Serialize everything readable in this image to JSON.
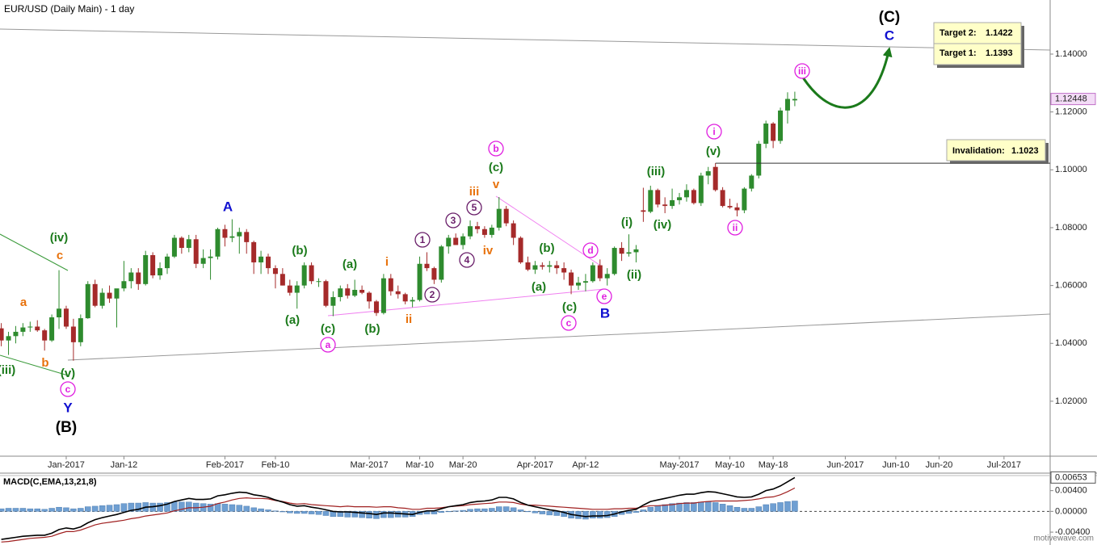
{
  "watermark": "motivewave.com",
  "chart_data": [
    {
      "type": "candlestick",
      "title": "EUR/USD (Daily Main) - 1 day",
      "up_color": "#2e8b2e",
      "down_color": "#a52a2a",
      "ylim": [
        1.001,
        1.1587
      ],
      "yticks": [
        {
          "value": 1.02,
          "label": "1.02000"
        },
        {
          "value": 1.04,
          "label": "1.04000"
        },
        {
          "value": 1.06,
          "label": "1.06000"
        },
        {
          "value": 1.08,
          "label": "1.08000"
        },
        {
          "value": 1.1,
          "label": "1.10000"
        },
        {
          "value": 1.12,
          "label": "1.12000"
        },
        {
          "value": 1.14,
          "label": "1.14000"
        }
      ],
      "last_price": {
        "value": 1.12448,
        "label": "1.12448"
      },
      "targets": [
        {
          "label": "Target 2:",
          "value": 1.1422
        },
        {
          "label": "Target 1:",
          "value": 1.1393
        }
      ],
      "invalidation": {
        "label": "Invalidation:",
        "value": 1.1023
      },
      "wave_labels": [
        "(iii)",
        "(iv)",
        "(v)",
        "a",
        "b",
        "c",
        "c",
        "Y",
        "(B)",
        "A",
        "(a)",
        "(b)",
        "(c)",
        "a",
        "(a)",
        "(b)",
        "i",
        "ii",
        "1",
        "2",
        "3",
        "4",
        "5",
        "iii",
        "iv",
        "v",
        "(c)",
        "b",
        "(b)",
        "(a)",
        "(c)",
        "c",
        "d",
        "e",
        "B",
        "(i)",
        "(ii)",
        "(iii)",
        "(iv)",
        "(v)",
        "i",
        "ii",
        "iii",
        "C",
        "(C)"
      ],
      "categories": [
        null,
        null,
        null,
        null,
        null,
        null,
        null,
        null,
        null,
        "Jan-2017",
        null,
        null,
        null,
        null,
        null,
        null,
        null,
        "Jan-12",
        null,
        null,
        null,
        null,
        null,
        null,
        null,
        null,
        null,
        null,
        null,
        null,
        null,
        "Feb-2017",
        null,
        null,
        null,
        null,
        null,
        null,
        "Feb-10",
        null,
        null,
        null,
        null,
        null,
        null,
        null,
        null,
        null,
        null,
        null,
        null,
        "Mar-2017",
        null,
        null,
        null,
        null,
        null,
        null,
        "Mar-10",
        null,
        null,
        null,
        null,
        null,
        "Mar-20",
        null,
        null,
        null,
        null,
        null,
        null,
        null,
        null,
        null,
        "Apr-2017",
        null,
        null,
        null,
        null,
        null,
        null,
        "Apr-12",
        null,
        null,
        null,
        null,
        null,
        null,
        null,
        null,
        null,
        null,
        null,
        null,
        "May-2017",
        null,
        null,
        null,
        null,
        null,
        null,
        "May-10",
        null,
        null,
        null,
        null,
        null,
        "May-18",
        null,
        null,
        null,
        null,
        null,
        null,
        null,
        null,
        null,
        "Jun-2017",
        null,
        null,
        null,
        null,
        null,
        null,
        "Jun-10",
        null,
        null,
        null,
        null,
        null,
        "Jun-20",
        null,
        null,
        null,
        null,
        null,
        null,
        null,
        null,
        "Jul-2017",
        null,
        null,
        null,
        null,
        null,
        null
      ],
      "open": [
        1.0452,
        1.041,
        1.0425,
        1.044,
        1.0455,
        1.0458,
        1.0445,
        1.041,
        1.049,
        1.052,
        1.0458,
        1.0404,
        1.0487,
        1.0605,
        1.053,
        1.0575,
        1.0555,
        1.059,
        1.0615,
        1.0645,
        1.0605,
        1.0705,
        1.0635,
        1.066,
        1.07,
        1.0765,
        1.073,
        1.076,
        1.0675,
        1.0695,
        1.07,
        1.0795,
        1.0765,
        1.077,
        1.0785,
        1.075,
        1.068,
        1.07,
        1.066,
        1.064,
        1.06,
        1.0575,
        1.06,
        1.067,
        1.0615,
        1.0615,
        1.053,
        1.056,
        1.059,
        1.0565,
        1.0585,
        1.0575,
        1.0545,
        1.0505,
        1.0625,
        1.058,
        1.057,
        1.0545,
        1.055,
        1.0675,
        1.066,
        1.062,
        1.0735,
        1.0765,
        1.074,
        1.077,
        1.0805,
        1.0795,
        1.0775,
        1.08,
        1.0865,
        1.0815,
        1.0765,
        1.068,
        1.0655,
        1.067,
        1.0665,
        1.067,
        1.066,
        1.0645,
        1.06,
        1.061,
        1.0615,
        1.067,
        1.0625,
        1.064,
        1.073,
        1.071,
        1.0715,
        1.086,
        1.0855,
        1.093,
        1.088,
        1.0875,
        1.0895,
        1.0905,
        1.093,
        1.0885,
        1.098,
        1.101,
        1.093,
        1.0875,
        1.087,
        1.086,
        1.0935,
        1.098,
        1.109,
        1.116,
        1.11,
        1.1205,
        1.124,
        null,
        null,
        null,
        null,
        null,
        null,
        null,
        null,
        null,
        null,
        null,
        null,
        null,
        null,
        null,
        null,
        null,
        null,
        null,
        null,
        null,
        null,
        null,
        null,
        null,
        null,
        null,
        null,
        null,
        null,
        null,
        null,
        null,
        null,
        null
      ],
      "high": [
        1.047,
        1.044,
        1.046,
        1.047,
        1.0475,
        1.048,
        1.045,
        1.05,
        1.0653,
        1.053,
        1.0485,
        1.05,
        1.0615,
        1.062,
        1.059,
        1.06,
        1.058,
        1.0685,
        1.066,
        1.066,
        1.072,
        1.0715,
        1.068,
        1.071,
        1.0775,
        1.077,
        1.0775,
        1.0775,
        1.0725,
        1.0725,
        1.08,
        1.081,
        1.0829,
        1.08,
        1.0795,
        1.0755,
        1.072,
        1.071,
        1.067,
        1.066,
        1.062,
        1.0615,
        1.068,
        1.068,
        1.0625,
        1.062,
        1.058,
        1.06,
        1.0605,
        1.062,
        1.06,
        1.058,
        1.055,
        1.064,
        1.064,
        1.06,
        1.0575,
        1.056,
        1.07,
        1.0715,
        1.0665,
        1.074,
        1.0775,
        1.078,
        1.078,
        1.0825,
        1.082,
        1.0805,
        1.081,
        1.0906,
        1.0875,
        1.0825,
        1.077,
        1.07,
        1.0685,
        1.068,
        1.0685,
        1.0685,
        1.068,
        1.0655,
        1.063,
        1.064,
        1.068,
        1.069,
        1.066,
        1.0735,
        1.075,
        1.0777,
        1.074,
        1.0938,
        1.0945,
        1.0935,
        1.0905,
        1.0935,
        1.092,
        1.095,
        1.0935,
        1.099,
        1.101,
        1.1023,
        1.094,
        1.09,
        1.0885,
        1.094,
        1.0985,
        1.11,
        1.117,
        1.1165,
        1.1215,
        1.1268,
        1.127,
        null,
        null,
        null,
        null,
        null,
        null,
        null,
        null,
        null,
        null,
        null,
        null,
        null,
        null,
        null,
        null,
        null,
        null,
        null,
        null,
        null,
        null,
        null,
        null,
        null,
        null,
        null,
        null,
        null,
        null,
        null,
        null,
        null,
        null,
        null
      ],
      "low": [
        1.039,
        1.036,
        1.04,
        1.0425,
        1.044,
        1.044,
        1.0375,
        1.0405,
        1.045,
        1.045,
        1.034,
        1.039,
        1.0485,
        1.0525,
        1.052,
        1.054,
        1.0455,
        1.058,
        1.059,
        1.0585,
        1.06,
        1.0625,
        1.062,
        1.064,
        1.0695,
        1.071,
        1.0715,
        1.066,
        1.066,
        1.062,
        1.069,
        1.0735,
        1.075,
        1.071,
        1.071,
        1.064,
        1.064,
        1.064,
        1.059,
        1.06,
        1.0565,
        1.052,
        1.059,
        1.0605,
        1.0595,
        1.0525,
        1.0494,
        1.0545,
        1.0555,
        1.056,
        1.057,
        1.052,
        1.0495,
        1.05,
        1.0565,
        1.0555,
        1.0535,
        1.0525,
        1.0545,
        1.065,
        1.0605,
        1.061,
        1.071,
        1.074,
        1.0725,
        1.076,
        1.078,
        1.0765,
        1.0765,
        1.079,
        1.0805,
        1.074,
        1.0675,
        1.065,
        1.064,
        1.0655,
        1.0645,
        1.064,
        1.062,
        1.057,
        1.0585,
        1.058,
        1.061,
        1.0615,
        1.06,
        1.0635,
        1.0685,
        1.07,
        1.068,
        1.082,
        1.085,
        1.087,
        1.085,
        1.0865,
        1.088,
        1.089,
        1.088,
        1.0875,
        1.095,
        1.0925,
        1.087,
        1.0865,
        1.0839,
        1.085,
        1.0925,
        1.097,
        1.1075,
        1.1075,
        1.109,
        1.116,
        1.122,
        null,
        null,
        null,
        null,
        null,
        null,
        null,
        null,
        null,
        null,
        null,
        null,
        null,
        null,
        null,
        null,
        null,
        null,
        null,
        null,
        null,
        null,
        null,
        null,
        null,
        null,
        null,
        null,
        null,
        null,
        null,
        null,
        null,
        null,
        null
      ],
      "close": [
        1.041,
        1.0425,
        1.044,
        1.0455,
        1.0458,
        1.0445,
        1.041,
        1.049,
        1.052,
        1.0458,
        1.0404,
        1.0487,
        1.0605,
        1.053,
        1.0575,
        1.0555,
        1.059,
        1.0615,
        1.0645,
        1.0605,
        1.0705,
        1.0635,
        1.066,
        1.07,
        1.0765,
        1.073,
        1.076,
        1.0675,
        1.0695,
        1.07,
        1.0795,
        1.0765,
        1.077,
        1.0785,
        1.075,
        1.068,
        1.07,
        1.066,
        1.064,
        1.06,
        1.0575,
        1.06,
        1.067,
        1.0615,
        1.0615,
        1.053,
        1.056,
        1.059,
        1.0565,
        1.0585,
        1.0575,
        1.0545,
        1.0505,
        1.0625,
        1.058,
        1.057,
        1.0545,
        1.055,
        1.0675,
        1.066,
        1.062,
        1.0735,
        1.0765,
        1.074,
        1.077,
        1.0805,
        1.0795,
        1.0775,
        1.08,
        1.0865,
        1.0815,
        1.0765,
        1.068,
        1.0655,
        1.067,
        1.0665,
        1.067,
        1.066,
        1.0645,
        1.06,
        1.061,
        1.0615,
        1.067,
        1.0625,
        1.064,
        1.073,
        1.071,
        1.0715,
        1.0725,
        1.0855,
        1.093,
        1.088,
        1.0875,
        1.0895,
        1.0905,
        1.093,
        1.0885,
        1.098,
        1.0995,
        1.093,
        1.0875,
        1.087,
        1.086,
        1.0935,
        1.098,
        1.109,
        1.116,
        1.11,
        1.1205,
        1.1245,
        1.12448,
        null,
        null,
        null,
        null,
        null,
        null,
        null,
        null,
        null,
        null,
        null,
        null,
        null,
        null,
        null,
        null,
        null,
        null,
        null,
        null,
        null,
        null,
        null,
        null,
        null,
        null,
        null,
        null,
        null,
        null,
        null,
        null,
        null,
        null,
        null
      ]
    },
    {
      "type": "macd",
      "title": "MACD(C,EMA,13,21,8)",
      "histogram_color": "#6f9fd2",
      "macd_color": "#000000",
      "signal_color": "#a02020",
      "ylim": [
        -0.0057,
        0.0069
      ],
      "yticks": [
        {
          "value": -0.004,
          "label": "-0.00400"
        },
        {
          "value": 0,
          "label": "0.00000"
        },
        {
          "value": 0.004,
          "label": "0.00400"
        }
      ],
      "last_value": 0.00653,
      "histogram": [
        0.0005,
        0.0006,
        0.0006,
        0.0006,
        0.0005,
        0.0005,
        0.0004,
        0.0006,
        0.0008,
        0.0007,
        0.0005,
        0.0006,
        0.0009,
        0.001,
        0.0011,
        0.0012,
        0.0013,
        0.0015,
        0.0016,
        0.0016,
        0.0017,
        0.0016,
        0.0016,
        0.0017,
        0.0018,
        0.0018,
        0.0018,
        0.0016,
        0.0015,
        0.0014,
        0.0015,
        0.0014,
        0.0013,
        0.0012,
        0.001,
        0.0007,
        0.0005,
        0.0003,
        0.0001,
        -0.0001,
        -0.0003,
        -0.0004,
        -0.0004,
        -0.0005,
        -0.0006,
        -0.0008,
        -0.001,
        -0.001,
        -0.0011,
        -0.0011,
        -0.0012,
        -0.0013,
        -0.0014,
        -0.0012,
        -0.0012,
        -0.0011,
        -0.0011,
        -0.001,
        -0.0006,
        -0.0005,
        -0.0005,
        -0.0002,
        0,
        0.0001,
        0.0002,
        0.0004,
        0.0005,
        0.0005,
        0.0006,
        0.0009,
        0.0009,
        0.0007,
        0.0003,
        0,
        -0.0003,
        -0.0005,
        -0.0007,
        -0.0008,
        -0.001,
        -0.0013,
        -0.0014,
        -0.0015,
        -0.0013,
        -0.0013,
        -0.0012,
        -0.001,
        -0.0006,
        -0.0004,
        -0.0002,
        0.0003,
        0.0008,
        0.0011,
        0.0013,
        0.0015,
        0.0016,
        0.0017,
        0.0017,
        0.0018,
        0.0019,
        0.0017,
        0.0014,
        0.0011,
        0.0008,
        0.0006,
        0.0006,
        0.0009,
        0.0013,
        0.0015,
        0.0017,
        0.0019,
        0.002
      ],
      "macd": [
        -0.0054,
        -0.0052,
        -0.005,
        -0.0048,
        -0.0047,
        -0.0046,
        -0.0046,
        -0.0042,
        -0.0035,
        -0.0032,
        -0.0034,
        -0.003,
        -0.0022,
        -0.0016,
        -0.0012,
        -0.0009,
        -0.0006,
        -0.0002,
        0.0002,
        0.0004,
        0.0008,
        0.0009,
        0.0011,
        0.0014,
        0.0019,
        0.0022,
        0.0025,
        0.0023,
        0.0023,
        0.0024,
        0.003,
        0.0032,
        0.0035,
        0.0037,
        0.0036,
        0.0032,
        0.003,
        0.0027,
        0.0022,
        0.0018,
        0.0013,
        0.001,
        0.0011,
        0.0008,
        0.0006,
        0.0003,
        0,
        -0.0001,
        -0.0001,
        -0.0002,
        -0.0003,
        -0.0004,
        -0.0006,
        -0.0003,
        -0.0003,
        -0.0004,
        -0.0005,
        -0.0006,
        -0.0002,
        0.0001,
        0.0001,
        0.0005,
        0.0009,
        0.0011,
        0.0013,
        0.0017,
        0.0019,
        0.002,
        0.0022,
        0.0027,
        0.0027,
        0.0024,
        0.0017,
        0.0012,
        0.0009,
        0.0006,
        0.0003,
        0.0001,
        -0.0002,
        -0.0006,
        -0.0008,
        -0.001,
        -0.0009,
        -0.0009,
        -0.0008,
        -0.0005,
        -0.0001,
        0.0002,
        0.0004,
        0.0012,
        0.0019,
        0.0022,
        0.0025,
        0.0028,
        0.0031,
        0.0033,
        0.0033,
        0.0036,
        0.0038,
        0.0037,
        0.0034,
        0.0031,
        0.0028,
        0.0027,
        0.0028,
        0.0033,
        0.004,
        0.0043,
        0.0049,
        0.0057,
        0.00653
      ],
      "signal": [
        -0.0059,
        -0.0058,
        -0.0056,
        -0.0054,
        -0.0052,
        -0.0051,
        -0.005,
        -0.0048,
        -0.0043,
        -0.0039,
        -0.0039,
        -0.0036,
        -0.0031,
        -0.0026,
        -0.0023,
        -0.0021,
        -0.0019,
        -0.0017,
        -0.0014,
        -0.0012,
        -0.0009,
        -0.0007,
        -0.0005,
        -0.0003,
        0.0001,
        0.0004,
        0.0007,
        0.0007,
        0.0008,
        0.001,
        0.0015,
        0.0018,
        0.0022,
        0.0025,
        0.0026,
        0.0025,
        0.0025,
        0.0024,
        0.0021,
        0.0019,
        0.0016,
        0.0014,
        0.0015,
        0.0013,
        0.0012,
        0.0011,
        0.001,
        0.0009,
        0.001,
        0.0009,
        0.0009,
        0.0009,
        0.0008,
        0.0009,
        0.0009,
        0.0007,
        0.0006,
        0.0004,
        0.0004,
        0.0006,
        0.0006,
        0.0007,
        0.0009,
        0.001,
        0.0011,
        0.0013,
        0.0014,
        0.0015,
        0.0016,
        0.0018,
        0.0018,
        0.0017,
        0.0014,
        0.0012,
        0.0012,
        0.0011,
        0.001,
        0.0009,
        0.0008,
        0.0007,
        0.0006,
        0.0005,
        0.0004,
        0.0004,
        0.0004,
        0.0005,
        0.0005,
        0.0006,
        0.0006,
        0.0009,
        0.0011,
        0.0011,
        0.0012,
        0.0013,
        0.0015,
        0.0016,
        0.0016,
        0.0018,
        0.0019,
        0.002,
        0.002,
        0.002,
        0.002,
        0.0021,
        0.0022,
        0.0024,
        0.0027,
        0.0028,
        0.0032,
        0.0038,
        0.0045
      ]
    }
  ]
}
